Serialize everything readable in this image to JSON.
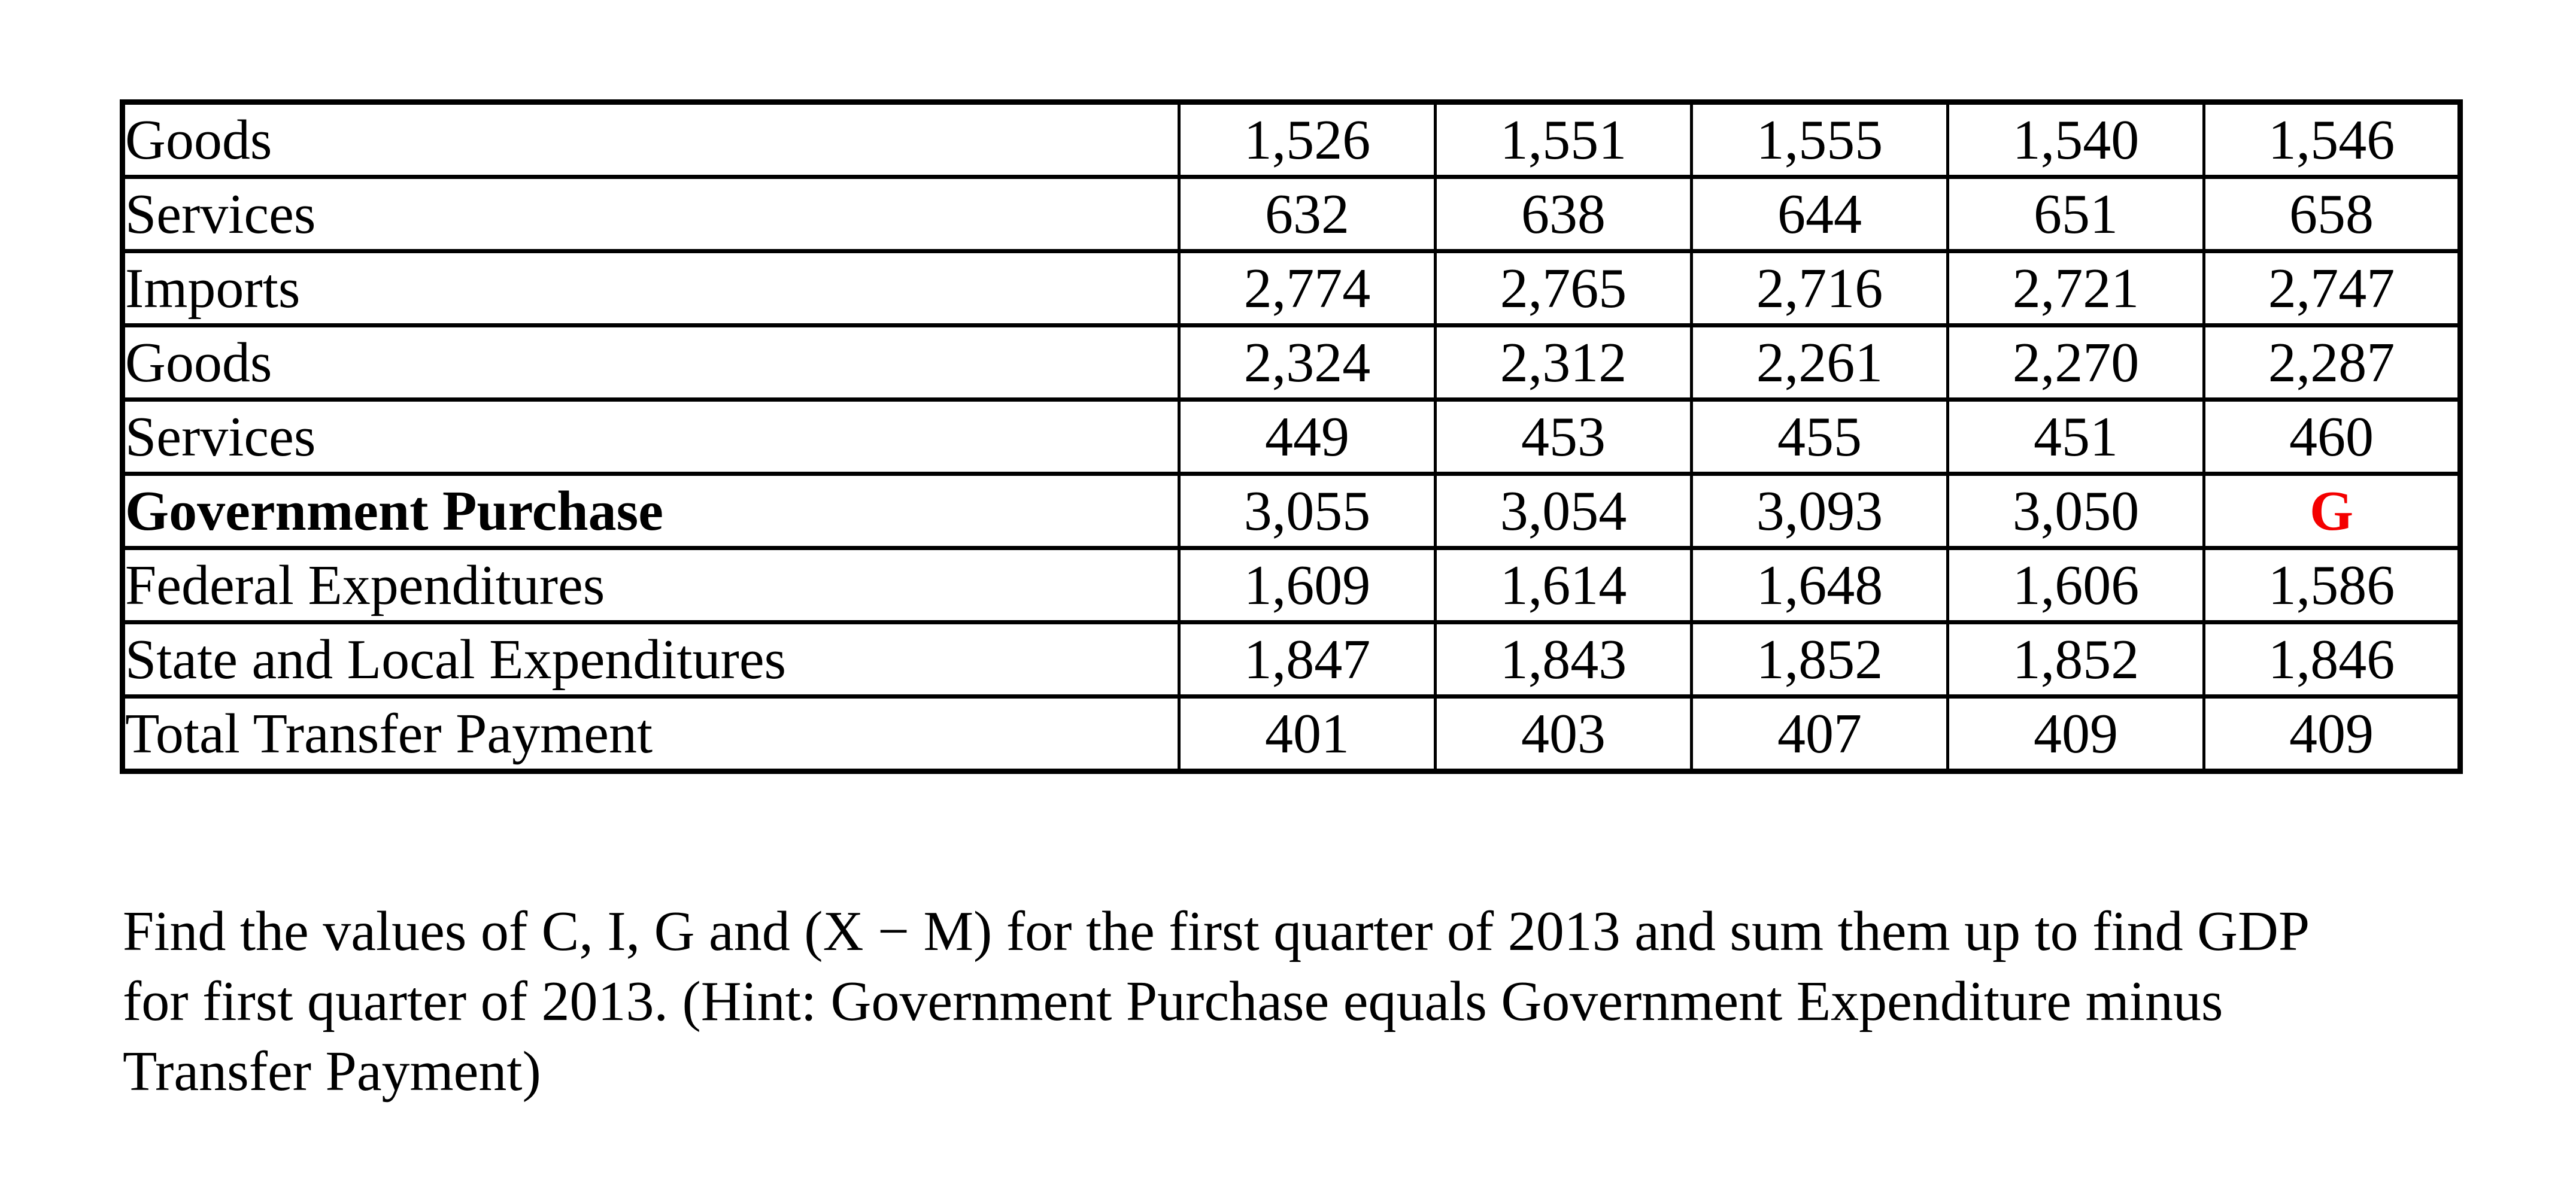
{
  "colors": {
    "background": "#ffffff",
    "text": "#000000",
    "table_border": "#000000",
    "highlight_red": "#f40000"
  },
  "table": {
    "rows": [
      {
        "label": "Goods",
        "indent": 3,
        "bold": false,
        "values": [
          "1,526",
          "1,551",
          "1,555",
          "1,540",
          "1,546"
        ],
        "red_value_index": null
      },
      {
        "label": "Services",
        "indent": 3,
        "bold": false,
        "values": [
          "632",
          "638",
          "644",
          "651",
          "658"
        ],
        "red_value_index": null
      },
      {
        "label": "Imports",
        "indent": 2,
        "bold": false,
        "values": [
          "2,774",
          "2,765",
          "2,716",
          "2,721",
          "2,747"
        ],
        "red_value_index": null
      },
      {
        "label": "Goods",
        "indent": 3,
        "bold": false,
        "values": [
          "2,324",
          "2,312",
          "2,261",
          "2,270",
          "2,287"
        ],
        "red_value_index": null
      },
      {
        "label": "Services",
        "indent": 3,
        "bold": false,
        "values": [
          "449",
          "453",
          "455",
          "451",
          "460"
        ],
        "red_value_index": null
      },
      {
        "label": "Government Purchase",
        "indent": 1,
        "bold": true,
        "values": [
          "3,055",
          "3,054",
          "3,093",
          "3,050",
          "G"
        ],
        "red_value_index": 4
      },
      {
        "label": "Federal Expenditures",
        "indent": 2,
        "bold": false,
        "values": [
          "1,609",
          "1,614",
          "1,648",
          "1,606",
          "1,586"
        ],
        "red_value_index": null
      },
      {
        "label": "State and Local Expenditures",
        "indent": 2,
        "bold": false,
        "values": [
          "1,847",
          "1,843",
          "1,852",
          "1,852",
          "1,846"
        ],
        "red_value_index": null
      },
      {
        "label": "Total Transfer Payment",
        "indent": 2,
        "bold": false,
        "values": [
          "401",
          "403",
          "407",
          "409",
          "409"
        ],
        "red_value_index": null
      }
    ]
  },
  "question": {
    "lines": [
      "Find the values of C, I, G and (X − M) for the first quarter of 2013 and sum them up to find GDP",
      "for first quarter of 2013. (Hint: Government Purchase equals Government Expenditure minus",
      "Transfer Payment)"
    ]
  }
}
